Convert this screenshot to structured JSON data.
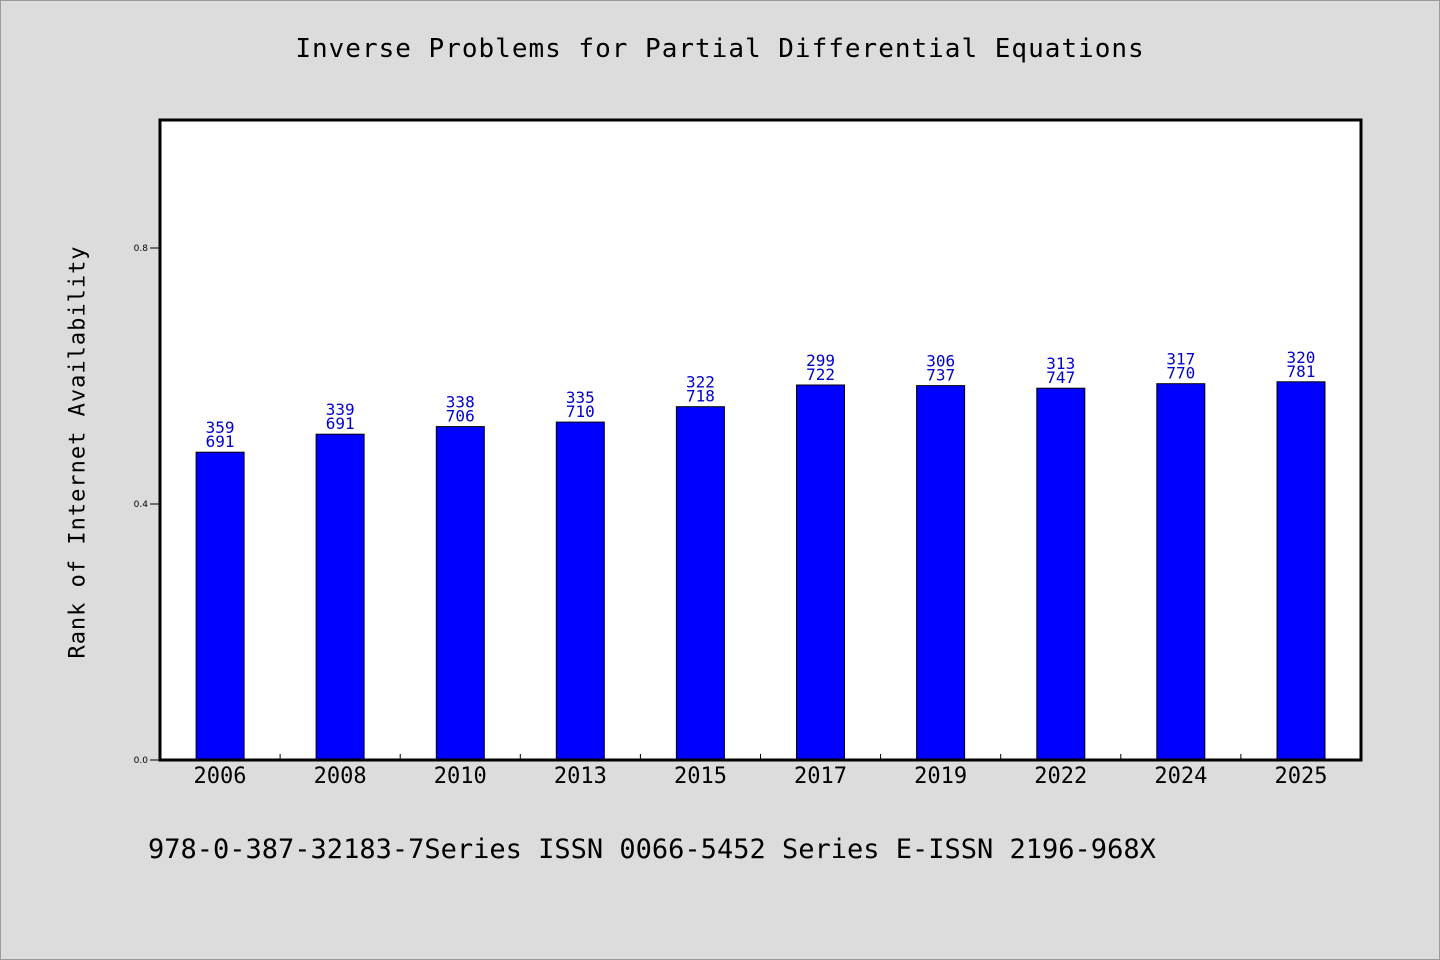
{
  "chart_data": {
    "type": "bar",
    "title": "Inverse Problems for Partial Differential Equations",
    "ylabel": "Rank of Internet Availability",
    "xlabel": "",
    "ylim": [
      0,
      1.0
    ],
    "yticks": [
      {
        "value": 0.0,
        "label": "0.0"
      },
      {
        "value": 0.4,
        "label": "0.4"
      },
      {
        "value": 0.8,
        "label": "0.8"
      }
    ],
    "categories": [
      "2006",
      "2008",
      "2010",
      "2013",
      "2015",
      "2017",
      "2019",
      "2022",
      "2024",
      "2025"
    ],
    "values": [
      0.481,
      0.509,
      0.521,
      0.528,
      0.552,
      0.586,
      0.585,
      0.581,
      0.588,
      0.591
    ],
    "labels_top": [
      "359",
      "339",
      "338",
      "335",
      "322",
      "299",
      "306",
      "313",
      "317",
      "320"
    ],
    "labels_bottom": [
      "691",
      "691",
      "706",
      "710",
      "718",
      "722",
      "737",
      "747",
      "770",
      "781"
    ],
    "grid": false,
    "legend": "none",
    "bar_color": "#0000ff",
    "label_color": "#0000cc"
  },
  "footer": {
    "text": "978-0-387-32183-7Series ISSN 0066-5452 Series E-ISSN 2196-968X"
  }
}
